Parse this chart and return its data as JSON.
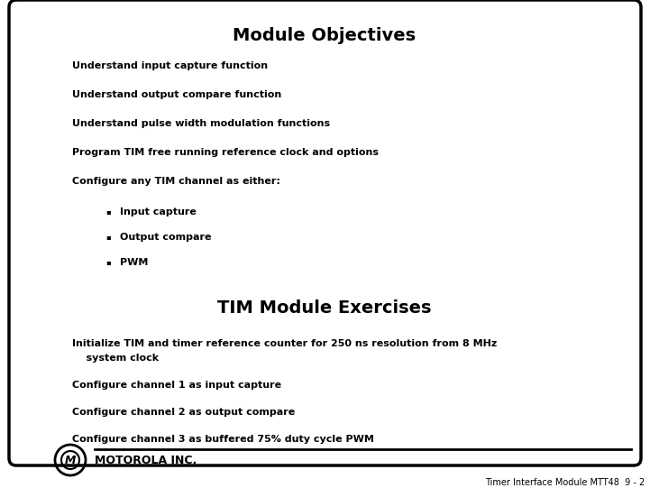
{
  "title": "Module Objectives",
  "subtitle": "TIM Module Exercises",
  "background_color": "#ffffff",
  "border_color": "#000000",
  "main_items": [
    "Understand input capture function",
    "Understand output compare function",
    "Understand pulse width modulation functions",
    "Program TIM free running reference clock and options",
    "Configure any TIM channel as either:"
  ],
  "sub_items": [
    "Input capture",
    "Output compare",
    "PWM"
  ],
  "exercise_items_line1": "Initialize TIM and timer reference counter for 250 ns resolution from 8 MHz",
  "exercise_items_line2": "    system clock",
  "exercise_items_rest": [
    "Configure channel 1 as input capture",
    "Configure channel 2 as output compare",
    "Configure channel 3 as buffered 75% duty cycle PWM"
  ],
  "footer_text": "MOTOROLA INC.",
  "footer_note": "Timer Interface Module MTT48  9 - 2",
  "title_fontsize": 14,
  "subtitle_fontsize": 14,
  "body_fontsize": 8,
  "footer_fontsize": 7,
  "text_color": "#000000",
  "title_color": "#000000",
  "bullet_char": "▪"
}
